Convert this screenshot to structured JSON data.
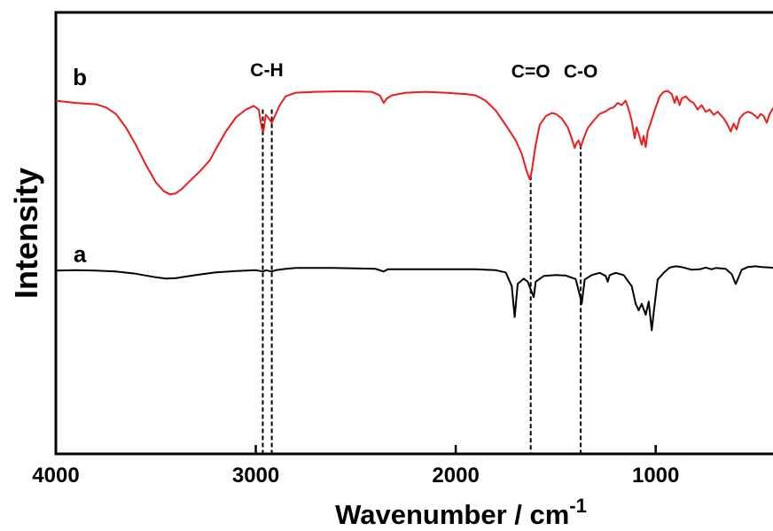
{
  "chart_data": {
    "type": "line",
    "title": "",
    "xlabel": "Wavenumber / cm",
    "xlabel_superscript": "-1",
    "ylabel": "Intensity",
    "xlim": [
      4000,
      400
    ],
    "x_reversed": true,
    "x_ticks": [
      4000,
      3000,
      2000,
      1000
    ],
    "tick_labels": [
      "4000",
      "3000",
      "2000",
      "1000"
    ],
    "y_ticks": false,
    "grid": false,
    "series": [
      {
        "name": "a",
        "color": "#000000",
        "points": [
          [
            4000,
            0.415
          ],
          [
            3900,
            0.416
          ],
          [
            3800,
            0.415
          ],
          [
            3700,
            0.413
          ],
          [
            3600,
            0.408
          ],
          [
            3500,
            0.4
          ],
          [
            3450,
            0.397
          ],
          [
            3400,
            0.398
          ],
          [
            3300,
            0.405
          ],
          [
            3200,
            0.411
          ],
          [
            3100,
            0.414
          ],
          [
            3000,
            0.416
          ],
          [
            2962,
            0.413
          ],
          [
            2950,
            0.416
          ],
          [
            2920,
            0.413
          ],
          [
            2900,
            0.416
          ],
          [
            2850,
            0.419
          ],
          [
            2800,
            0.421
          ],
          [
            2700,
            0.421
          ],
          [
            2600,
            0.421
          ],
          [
            2500,
            0.42
          ],
          [
            2400,
            0.419
          ],
          [
            2360,
            0.413
          ],
          [
            2340,
            0.418
          ],
          [
            2300,
            0.418
          ],
          [
            2200,
            0.418
          ],
          [
            2100,
            0.418
          ],
          [
            2000,
            0.418
          ],
          [
            1900,
            0.418
          ],
          [
            1800,
            0.416
          ],
          [
            1750,
            0.411
          ],
          [
            1720,
            0.38
          ],
          [
            1705,
            0.31
          ],
          [
            1690,
            0.385
          ],
          [
            1660,
            0.397
          ],
          [
            1640,
            0.39
          ],
          [
            1610,
            0.355
          ],
          [
            1600,
            0.39
          ],
          [
            1560,
            0.403
          ],
          [
            1500,
            0.405
          ],
          [
            1450,
            0.404
          ],
          [
            1400,
            0.396
          ],
          [
            1380,
            0.36
          ],
          [
            1370,
            0.34
          ],
          [
            1355,
            0.395
          ],
          [
            1320,
            0.405
          ],
          [
            1280,
            0.41
          ],
          [
            1250,
            0.403
          ],
          [
            1240,
            0.39
          ],
          [
            1230,
            0.405
          ],
          [
            1200,
            0.41
          ],
          [
            1160,
            0.405
          ],
          [
            1120,
            0.38
          ],
          [
            1100,
            0.34
          ],
          [
            1085,
            0.325
          ],
          [
            1070,
            0.34
          ],
          [
            1050,
            0.315
          ],
          [
            1035,
            0.345
          ],
          [
            1020,
            0.28
          ],
          [
            1010,
            0.32
          ],
          [
            990,
            0.395
          ],
          [
            960,
            0.41
          ],
          [
            930,
            0.422
          ],
          [
            900,
            0.425
          ],
          [
            870,
            0.423
          ],
          [
            820,
            0.417
          ],
          [
            780,
            0.418
          ],
          [
            750,
            0.422
          ],
          [
            720,
            0.418
          ],
          [
            700,
            0.421
          ],
          [
            650,
            0.419
          ],
          [
            620,
            0.407
          ],
          [
            600,
            0.385
          ],
          [
            590,
            0.395
          ],
          [
            570,
            0.417
          ],
          [
            540,
            0.423
          ],
          [
            500,
            0.425
          ],
          [
            470,
            0.423
          ],
          [
            430,
            0.422
          ],
          [
            400,
            0.421
          ]
        ]
      },
      {
        "name": "b",
        "color": "#ee1c1c",
        "points": [
          [
            4000,
            0.8
          ],
          [
            3900,
            0.795
          ],
          [
            3800,
            0.792
          ],
          [
            3750,
            0.785
          ],
          [
            3700,
            0.77
          ],
          [
            3650,
            0.74
          ],
          [
            3600,
            0.7
          ],
          [
            3550,
            0.655
          ],
          [
            3500,
            0.615
          ],
          [
            3460,
            0.595
          ],
          [
            3430,
            0.588
          ],
          [
            3400,
            0.59
          ],
          [
            3370,
            0.6
          ],
          [
            3330,
            0.618
          ],
          [
            3280,
            0.64
          ],
          [
            3230,
            0.665
          ],
          [
            3200,
            0.69
          ],
          [
            3150,
            0.73
          ],
          [
            3100,
            0.762
          ],
          [
            3050,
            0.78
          ],
          [
            3010,
            0.788
          ],
          [
            2985,
            0.78
          ],
          [
            2970,
            0.738
          ],
          [
            2962,
            0.73
          ],
          [
            2950,
            0.768
          ],
          [
            2935,
            0.76
          ],
          [
            2920,
            0.75
          ],
          [
            2905,
            0.765
          ],
          [
            2880,
            0.79
          ],
          [
            2850,
            0.81
          ],
          [
            2800,
            0.818
          ],
          [
            2700,
            0.82
          ],
          [
            2600,
            0.821
          ],
          [
            2500,
            0.821
          ],
          [
            2420,
            0.82
          ],
          [
            2380,
            0.812
          ],
          [
            2360,
            0.795
          ],
          [
            2345,
            0.805
          ],
          [
            2320,
            0.812
          ],
          [
            2250,
            0.818
          ],
          [
            2150,
            0.82
          ],
          [
            2050,
            0.818
          ],
          [
            1950,
            0.815
          ],
          [
            1900,
            0.812
          ],
          [
            1850,
            0.8
          ],
          [
            1800,
            0.778
          ],
          [
            1750,
            0.745
          ],
          [
            1700,
            0.71
          ],
          [
            1670,
            0.68
          ],
          [
            1645,
            0.64
          ],
          [
            1630,
            0.622
          ],
          [
            1620,
            0.64
          ],
          [
            1600,
            0.7
          ],
          [
            1580,
            0.745
          ],
          [
            1550,
            0.765
          ],
          [
            1520,
            0.772
          ],
          [
            1500,
            0.77
          ],
          [
            1470,
            0.76
          ],
          [
            1440,
            0.74
          ],
          [
            1420,
            0.715
          ],
          [
            1405,
            0.693
          ],
          [
            1395,
            0.705
          ],
          [
            1385,
            0.71
          ],
          [
            1375,
            0.695
          ],
          [
            1360,
            0.715
          ],
          [
            1340,
            0.738
          ],
          [
            1310,
            0.755
          ],
          [
            1280,
            0.77
          ],
          [
            1250,
            0.776
          ],
          [
            1230,
            0.782
          ],
          [
            1210,
            0.785
          ],
          [
            1190,
            0.795
          ],
          [
            1170,
            0.79
          ],
          [
            1150,
            0.8
          ],
          [
            1135,
            0.78
          ],
          [
            1120,
            0.755
          ],
          [
            1105,
            0.715
          ],
          [
            1095,
            0.74
          ],
          [
            1085,
            0.725
          ],
          [
            1070,
            0.7
          ],
          [
            1060,
            0.72
          ],
          [
            1050,
            0.695
          ],
          [
            1040,
            0.73
          ],
          [
            1025,
            0.75
          ],
          [
            1000,
            0.785
          ],
          [
            980,
            0.81
          ],
          [
            960,
            0.82
          ],
          [
            940,
            0.822
          ],
          [
            920,
            0.815
          ],
          [
            905,
            0.795
          ],
          [
            895,
            0.81
          ],
          [
            880,
            0.79
          ],
          [
            870,
            0.805
          ],
          [
            850,
            0.81
          ],
          [
            830,
            0.8
          ],
          [
            810,
            0.795
          ],
          [
            790,
            0.78
          ],
          [
            770,
            0.79
          ],
          [
            750,
            0.775
          ],
          [
            730,
            0.78
          ],
          [
            710,
            0.768
          ],
          [
            690,
            0.775
          ],
          [
            660,
            0.76
          ],
          [
            640,
            0.745
          ],
          [
            625,
            0.73
          ],
          [
            610,
            0.748
          ],
          [
            595,
            0.735
          ],
          [
            580,
            0.76
          ],
          [
            560,
            0.77
          ],
          [
            540,
            0.775
          ],
          [
            520,
            0.772
          ],
          [
            500,
            0.765
          ],
          [
            490,
            0.76
          ],
          [
            475,
            0.77
          ],
          [
            460,
            0.765
          ],
          [
            445,
            0.75
          ],
          [
            430,
            0.77
          ],
          [
            410,
            0.785
          ],
          [
            400,
            0.79
          ]
        ]
      }
    ],
    "trace_labels": [
      {
        "text": "a",
        "x": 3880,
        "y": 0.435
      },
      {
        "text": "b",
        "x": 3880,
        "y": 0.835
      }
    ],
    "band_markers": [
      {
        "label": "C-H",
        "x": [
          2965,
          2920
        ],
        "y_top": 0.78,
        "label_x": 2945,
        "label_y": 0.855
      },
      {
        "label": "C=O",
        "x": [
          1625
        ],
        "y_top": 0.63,
        "label_x": 1625,
        "label_y": 0.852
      },
      {
        "label": "C-O",
        "x": [
          1375
        ],
        "y_top": 0.7,
        "label_x": 1375,
        "label_y": 0.852
      }
    ],
    "ylim": [
      0,
      1
    ]
  }
}
